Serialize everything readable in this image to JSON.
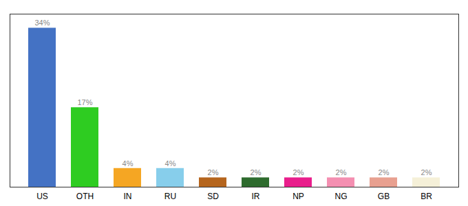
{
  "chart_data": {
    "type": "bar",
    "categories": [
      "US",
      "OTH",
      "IN",
      "RU",
      "SD",
      "IR",
      "NP",
      "NG",
      "GB",
      "BR"
    ],
    "values": [
      34,
      17,
      4,
      4,
      2,
      2,
      2,
      2,
      2,
      2
    ],
    "value_labels": [
      "34%",
      "17%",
      "4%",
      "4%",
      "2%",
      "2%",
      "2%",
      "2%",
      "2%",
      "2%"
    ],
    "colors": [
      "#4472c4",
      "#2ecc21",
      "#f5a623",
      "#87ceeb",
      "#b5651d",
      "#2e6b2e",
      "#e91e8c",
      "#f48fb1",
      "#e8a090",
      "#f5f0d8"
    ],
    "ylim": [
      0,
      37
    ],
    "data_labels": true,
    "tick_labels": "x",
    "grid": false
  }
}
